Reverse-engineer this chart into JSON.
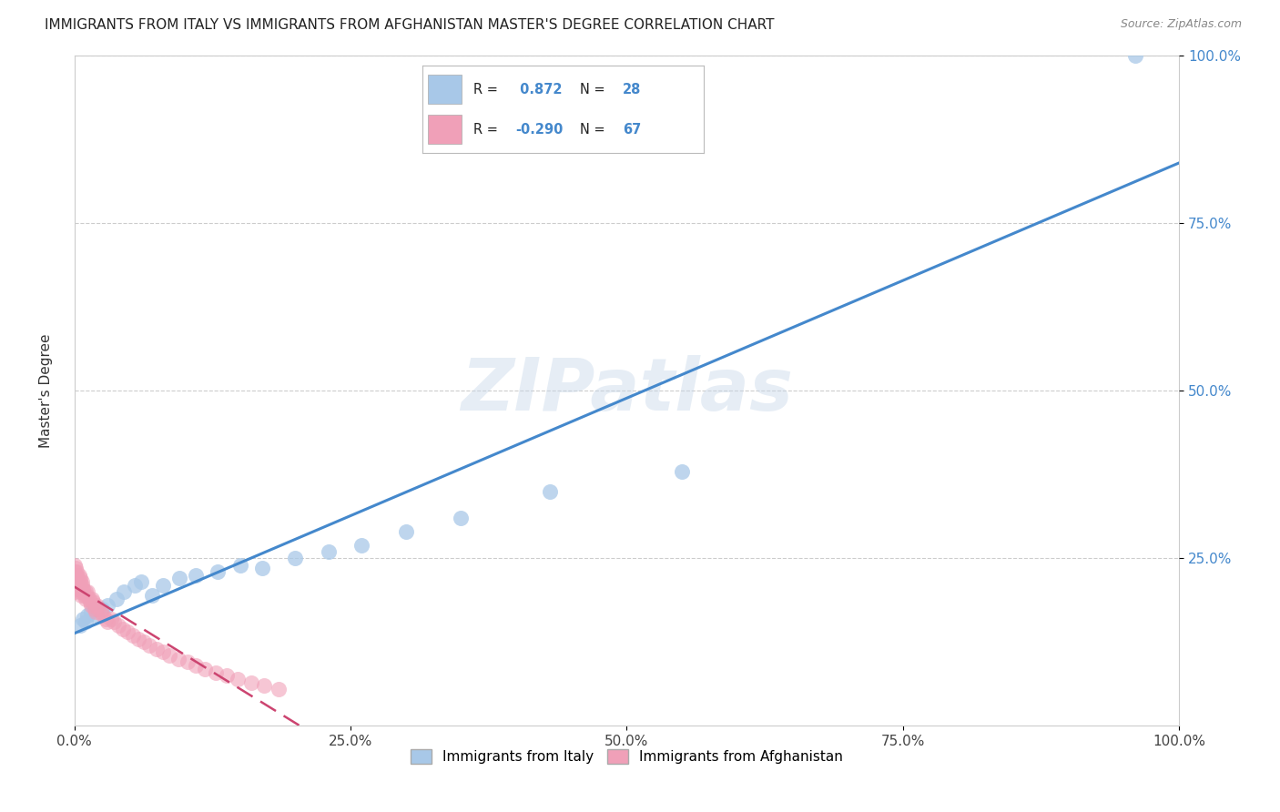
{
  "title": "IMMIGRANTS FROM ITALY VS IMMIGRANTS FROM AFGHANISTAN MASTER'S DEGREE CORRELATION CHART",
  "source": "Source: ZipAtlas.com",
  "ylabel": "Master's Degree",
  "watermark": "ZIPatlas",
  "xlim": [
    0.0,
    1.0
  ],
  "ylim": [
    0.0,
    1.0
  ],
  "xtick_labels": [
    "0.0%",
    "25.0%",
    "50.0%",
    "75.0%",
    "100.0%"
  ],
  "xtick_values": [
    0.0,
    0.25,
    0.5,
    0.75,
    1.0
  ],
  "right_ytick_labels": [
    "25.0%",
    "50.0%",
    "75.0%",
    "100.0%"
  ],
  "right_ytick_values": [
    0.25,
    0.5,
    0.75,
    1.0
  ],
  "italy_color": "#a8c8e8",
  "italy_color_line": "#4488cc",
  "afghanistan_color": "#f0a0b8",
  "afghanistan_color_line": "#cc4470",
  "italy_R": 0.872,
  "italy_N": 28,
  "afghanistan_R": -0.29,
  "afghanistan_N": 67,
  "legend_label_italy": "Immigrants from Italy",
  "legend_label_afghanistan": "Immigrants from Afghanistan",
  "italy_x": [
    0.005,
    0.008,
    0.01,
    0.012,
    0.015,
    0.018,
    0.02,
    0.025,
    0.03,
    0.038,
    0.045,
    0.055,
    0.06,
    0.07,
    0.08,
    0.095,
    0.11,
    0.13,
    0.15,
    0.17,
    0.2,
    0.23,
    0.26,
    0.3,
    0.35,
    0.43,
    0.55,
    0.96
  ],
  "italy_y": [
    0.15,
    0.16,
    0.155,
    0.165,
    0.17,
    0.175,
    0.165,
    0.175,
    0.18,
    0.19,
    0.2,
    0.21,
    0.215,
    0.195,
    0.21,
    0.22,
    0.225,
    0.23,
    0.24,
    0.235,
    0.25,
    0.26,
    0.27,
    0.29,
    0.31,
    0.35,
    0.38,
    1.0
  ],
  "afghanistan_x": [
    0.0,
    0.0,
    0.0,
    0.0,
    0.0,
    0.0,
    0.0,
    0.001,
    0.001,
    0.001,
    0.002,
    0.002,
    0.002,
    0.002,
    0.003,
    0.003,
    0.004,
    0.004,
    0.005,
    0.005,
    0.005,
    0.006,
    0.006,
    0.007,
    0.007,
    0.008,
    0.008,
    0.009,
    0.01,
    0.01,
    0.011,
    0.012,
    0.013,
    0.014,
    0.015,
    0.016,
    0.017,
    0.018,
    0.019,
    0.02,
    0.022,
    0.024,
    0.026,
    0.028,
    0.03,
    0.033,
    0.036,
    0.04,
    0.044,
    0.048,
    0.053,
    0.058,
    0.063,
    0.068,
    0.074,
    0.08,
    0.086,
    0.094,
    0.102,
    0.11,
    0.118,
    0.128,
    0.138,
    0.148,
    0.16,
    0.172,
    0.185
  ],
  "afghanistan_y": [
    0.22,
    0.24,
    0.21,
    0.23,
    0.215,
    0.2,
    0.225,
    0.235,
    0.22,
    0.215,
    0.225,
    0.21,
    0.205,
    0.23,
    0.215,
    0.22,
    0.225,
    0.21,
    0.2,
    0.215,
    0.22,
    0.205,
    0.195,
    0.21,
    0.215,
    0.2,
    0.205,
    0.195,
    0.2,
    0.19,
    0.195,
    0.2,
    0.19,
    0.185,
    0.18,
    0.19,
    0.185,
    0.175,
    0.17,
    0.18,
    0.175,
    0.17,
    0.165,
    0.16,
    0.155,
    0.16,
    0.155,
    0.15,
    0.145,
    0.14,
    0.135,
    0.13,
    0.125,
    0.12,
    0.115,
    0.11,
    0.105,
    0.1,
    0.095,
    0.09,
    0.085,
    0.08,
    0.075,
    0.07,
    0.065,
    0.06,
    0.055
  ],
  "background_color": "#ffffff",
  "grid_color": "#cccccc",
  "title_fontsize": 11,
  "axis_fontsize": 11,
  "tick_fontsize": 11,
  "legend_fontsize": 11
}
